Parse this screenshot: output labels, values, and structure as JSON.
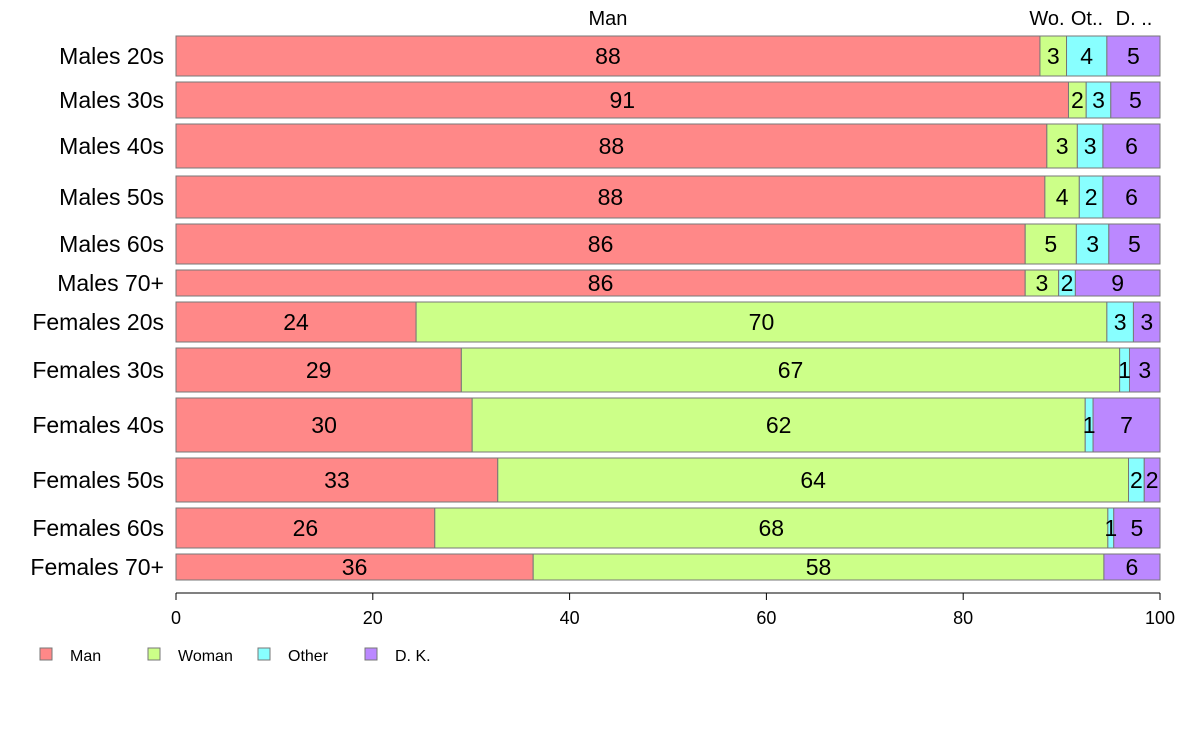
{
  "chart_data": {
    "type": "bar",
    "orientation": "horizontal",
    "stacked": true,
    "title": "",
    "xlabel": "",
    "ylabel": "",
    "xlim": [
      0,
      100
    ],
    "x_ticks": [
      "0",
      "20",
      "40",
      "60",
      "80",
      "100"
    ],
    "x_tick_values": [
      0,
      20,
      40,
      60,
      80,
      100
    ],
    "categories": [
      "Males 20s",
      "Males 30s",
      "Males 40s",
      "Males 50s",
      "Males 60s",
      "Males 70+",
      "Females 20s",
      "Females 30s",
      "Females 40s",
      "Females 50s",
      "Females 60s",
      "Females 70+"
    ],
    "top_labels": [
      "Man",
      "Wo.",
      "Ot..",
      "D. .."
    ],
    "series": [
      {
        "name": "Man",
        "color": "#ff8888",
        "values": [
          87.8,
          90.7,
          88.5,
          88.3,
          86.3,
          86.3,
          24.4,
          29.0,
          30.1,
          32.7,
          26.3,
          36.3
        ]
      },
      {
        "name": "Woman",
        "color": "#ccff88",
        "values": [
          2.7,
          1.8,
          3.1,
          3.5,
          5.2,
          3.4,
          70.2,
          66.9,
          62.3,
          64.1,
          68.4,
          58.0
        ]
      },
      {
        "name": "Other",
        "color": "#88ffff",
        "values": [
          4.1,
          2.5,
          2.6,
          2.4,
          3.3,
          1.7,
          2.7,
          1.0,
          0.8,
          1.6,
          0.6,
          0.0
        ]
      },
      {
        "name": "D. K.",
        "color": "#bb88ff",
        "values": [
          5.4,
          5.0,
          5.8,
          5.8,
          5.2,
          8.6,
          2.7,
          3.1,
          6.8,
          1.6,
          4.7,
          5.7
        ]
      }
    ],
    "data_labels": [
      [
        "88",
        "3",
        "4",
        "5"
      ],
      [
        "91",
        "2",
        "3",
        "5"
      ],
      [
        "88",
        "3",
        "3",
        "6"
      ],
      [
        "88",
        "4",
        "2",
        "6"
      ],
      [
        "86",
        "5",
        "3",
        "5"
      ],
      [
        "86",
        "3",
        "2",
        "9"
      ],
      [
        "24",
        "70",
        "3",
        "3"
      ],
      [
        "29",
        "67",
        "1",
        "3"
      ],
      [
        "30",
        "62",
        "1",
        "7"
      ],
      [
        "33",
        "64",
        "2",
        "2"
      ],
      [
        "26",
        "68",
        "1",
        "5"
      ],
      [
        "36",
        "58",
        "",
        "6"
      ]
    ],
    "legend": {
      "placement": "bottom-left",
      "entries": [
        "Man",
        "Woman",
        "Other",
        "D. K."
      ]
    },
    "grid": false
  }
}
